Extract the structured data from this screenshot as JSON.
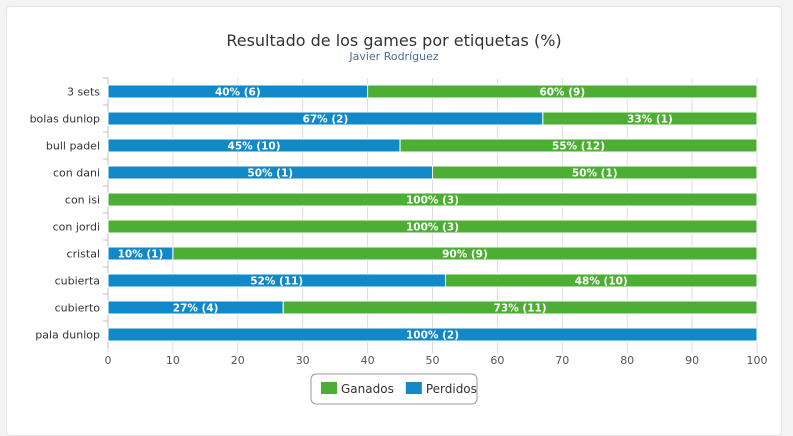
{
  "chart_data": {
    "type": "bar",
    "orientation": "horizontal",
    "stacked": true,
    "title": "Resultado de los games por etiquetas (%)",
    "subtitle": "Javier Rodríguez",
    "categories": [
      "3 sets",
      "bolas dunlop",
      "bull padel",
      "con dani",
      "con isi",
      "con jordi",
      "cristal",
      "cubierta",
      "cubierto",
      "pala dunlop"
    ],
    "series": [
      {
        "name": "Perdidos",
        "color": "#1188c8",
        "values": [
          40,
          67,
          45,
          50,
          0,
          0,
          10,
          52,
          27,
          100
        ],
        "labels": [
          "40% (6)",
          "67% (2)",
          "45% (10)",
          "50% (1)",
          "",
          "",
          "10% (1)",
          "52% (11)",
          "27% (4)",
          "100% (2)"
        ]
      },
      {
        "name": "Ganados",
        "color": "#4cae33",
        "values": [
          60,
          33,
          55,
          50,
          100,
          100,
          90,
          48,
          73,
          0
        ],
        "labels": [
          "60% (9)",
          "33% (1)",
          "55% (12)",
          "50% (1)",
          "100% (3)",
          "100% (3)",
          "90% (9)",
          "48% (10)",
          "73% (11)",
          ""
        ]
      }
    ],
    "xlim": [
      0,
      100
    ],
    "xticks": [
      "0",
      "10",
      "20",
      "30",
      "40",
      "50",
      "60",
      "70",
      "80",
      "90",
      "100"
    ],
    "grid": true,
    "legend": {
      "placement": "bottom-center",
      "items": [
        {
          "name": "Ganados",
          "color": "#4cae33"
        },
        {
          "name": "Perdidos",
          "color": "#1188c8"
        }
      ]
    }
  }
}
